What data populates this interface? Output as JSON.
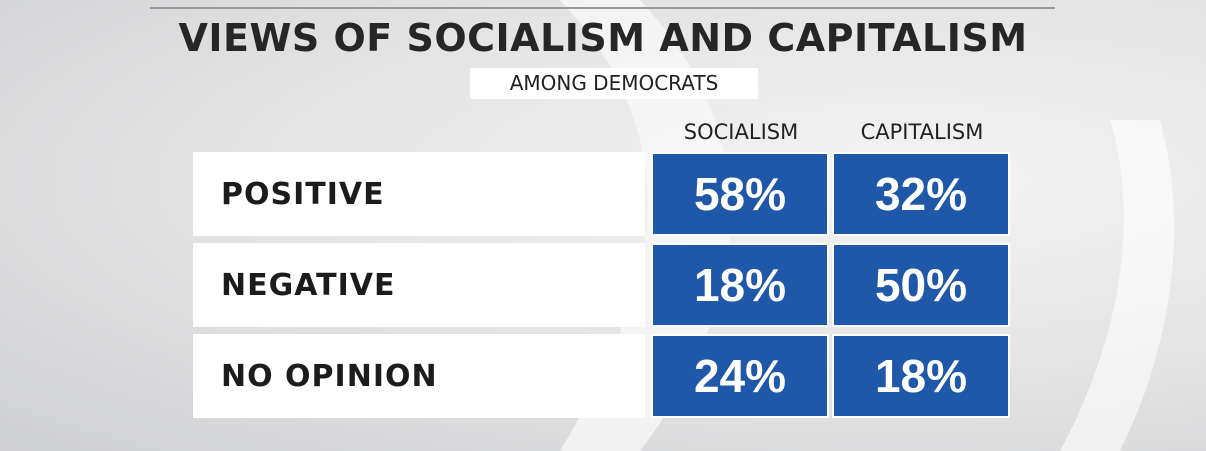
{
  "title": "VIEWS OF SOCIALISM AND CAPITALISM",
  "subtitle": "AMONG DEMOCRATS",
  "table": {
    "columns": [
      "SOCIALISM",
      "CAPITALISM"
    ],
    "rows": [
      {
        "label": "POSITIVE",
        "cells": [
          "58%",
          "32%"
        ]
      },
      {
        "label": "NEGATIVE",
        "cells": [
          "18%",
          "50%"
        ]
      },
      {
        "label": "NO OPINION",
        "cells": [
          "24%",
          "18%"
        ]
      }
    ]
  }
}
